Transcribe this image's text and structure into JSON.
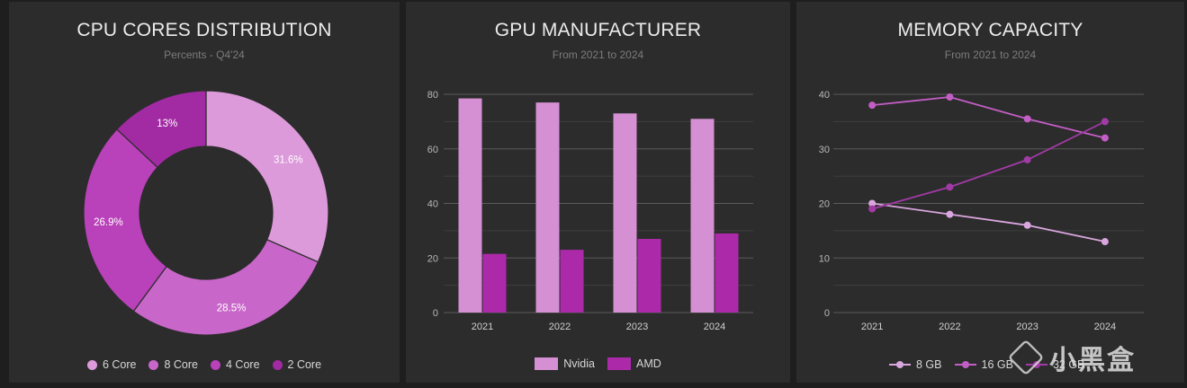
{
  "chart_data": [
    {
      "type": "pie",
      "title": "CPU CORES DISTRIBUTION",
      "subtitle": "Percents - Q4'24",
      "labels": [
        "6 Core",
        "8 Core",
        "4 Core",
        "2 Core"
      ],
      "values": [
        31.6,
        28.5,
        26.9,
        13
      ],
      "value_labels": [
        "31.6%",
        "28.5%",
        "26.9%",
        "13%"
      ],
      "colors": [
        "#dc9ada",
        "#c866c9",
        "#b941b9",
        "#a22aa3"
      ],
      "donut": true,
      "legend": "bottom"
    },
    {
      "type": "bar",
      "title": "GPU MANUFACTURER",
      "subtitle": "From 2021 to 2024",
      "categories": [
        "2021",
        "2022",
        "2023",
        "2024"
      ],
      "series": [
        {
          "name": "Nvidia",
          "values": [
            78.5,
            77,
            73,
            71
          ],
          "color": "#d490d3"
        },
        {
          "name": "AMD",
          "values": [
            21.5,
            23,
            27,
            29
          ],
          "color": "#ac2aaa"
        }
      ],
      "ylim": [
        0,
        80
      ],
      "yticks": [
        "0",
        "20",
        "40",
        "60",
        "80"
      ],
      "grid": true,
      "legend": "bottom"
    },
    {
      "type": "line",
      "title": "MEMORY CAPACITY",
      "subtitle": "From 2021 to 2024",
      "categories": [
        "2021",
        "2022",
        "2023",
        "2024"
      ],
      "series": [
        {
          "name": "8 GB",
          "values": [
            20,
            18,
            16,
            13
          ],
          "color": "#d9a6de"
        },
        {
          "name": "16 GB",
          "values": [
            38,
            39.5,
            35.5,
            32
          ],
          "color": "#c35ec6"
        },
        {
          "name": "32 GB",
          "values": [
            19,
            23,
            28,
            35
          ],
          "color": "#a23aa6"
        }
      ],
      "ylim": [
        0,
        40
      ],
      "yticks": [
        "0",
        "10",
        "20",
        "30",
        "40"
      ],
      "grid": true,
      "legend": "bottom"
    }
  ],
  "watermark": "小黑盒"
}
